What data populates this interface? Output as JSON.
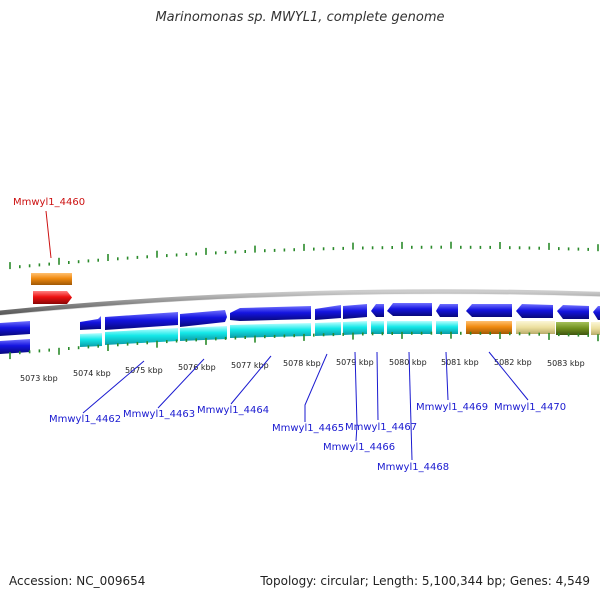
{
  "title": "Marinomonas sp. MWYL1, complete genome",
  "footer": {
    "accession": "Accession: NC_009654",
    "topology": "Topology: circular; Length: 5,100,344 bp; Genes: 4,549"
  },
  "kbp_labels": [
    "5073 kbp",
    "5074 kbp",
    "5075 kbp",
    "5076 kbp",
    "5077 kbp",
    "5078 kbp",
    "5079 kbp",
    "5080 kbp",
    "5081 kbp",
    "5082 kbp",
    "5083 kbp"
  ],
  "gene_labels": [
    "Mmwyl1_4460",
    "Mmwyl1_4462",
    "Mmwyl1_4463",
    "Mmwyl1_4464",
    "Mmwyl1_4465",
    "Mmwyl1_4466",
    "Mmwyl1_4467",
    "Mmwyl1_4468",
    "Mmwyl1_4469",
    "Mmwyl1_4470"
  ],
  "colors": {
    "forward_gene": "#1414e0",
    "cds": "#14e8e8",
    "highlight_gene": "#ee1111",
    "highlight_cds": "#f08a10",
    "feature_pale": "#ecdf9e",
    "feature_olive": "#6f8f1e",
    "tick": "#2a8a2a",
    "label_blue": "#1a1ad0",
    "label_red": "#cc1111",
    "backbone": "#888888"
  }
}
